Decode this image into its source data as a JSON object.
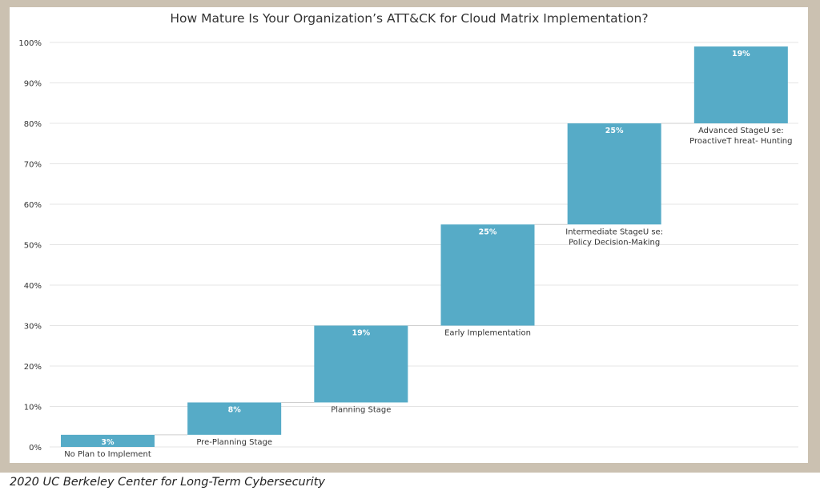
{
  "chart_data": {
    "type": "bar",
    "subtype": "waterfall",
    "title": "How Mature Is Your Organization’s ATT&CK for Cloud Matrix Implementation?",
    "categories": [
      [
        "No Plan to Implement"
      ],
      [
        "Pre-Planning Stage"
      ],
      [
        "Planning Stage"
      ],
      [
        "Early Implementation"
      ],
      [
        "Intermediate StageU se:",
        "Policy Decision-Making"
      ],
      [
        "Advanced StageU se:",
        "ProactiveT hreat- Hunting"
      ]
    ],
    "values": [
      3,
      8,
      19,
      25,
      25,
      19
    ],
    "value_labels": [
      "3%",
      "8%",
      "19%",
      "25%",
      "25%",
      "19%"
    ],
    "ylim": [
      0,
      100
    ],
    "yticks": [
      "0%",
      "10%",
      "20%",
      "30%",
      "40%",
      "50%",
      "60%",
      "70%",
      "80%",
      "90%",
      "100%"
    ],
    "grid": true,
    "bar_color": "#56abc7",
    "grid_color": "#e4e4e4"
  },
  "footer": "2020 UC Berkeley Center for Long-Term Cybersecurity"
}
